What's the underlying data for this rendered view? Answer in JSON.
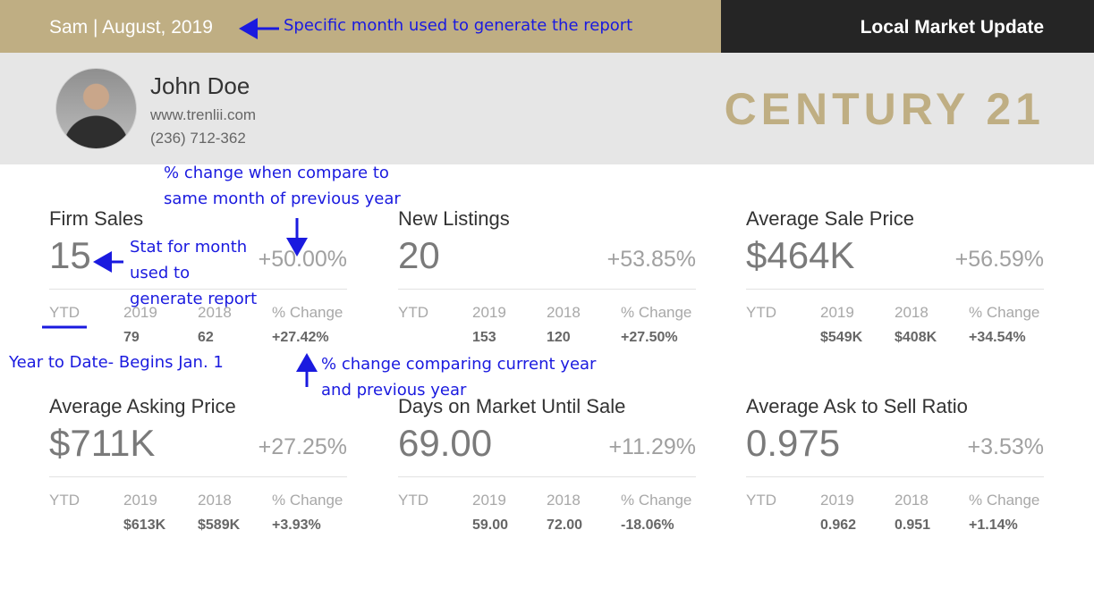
{
  "header": {
    "period": "Sam | August, 2019",
    "title": "Local Market Update"
  },
  "agent": {
    "name": "John Doe",
    "website": "www.trenlii.com",
    "phone": "(236) 712-362"
  },
  "brand": "CENTURY 21",
  "stats": [
    {
      "title": "Firm Sales",
      "value": "15",
      "change": "+50.00%",
      "ytd_label": "YTD",
      "col_2019": "2019",
      "col_2018": "2018",
      "col_change": "% Change",
      "v2019": "79",
      "v2018": "62",
      "vchange": "+27.42%"
    },
    {
      "title": "New Listings",
      "value": "20",
      "change": "+53.85%",
      "ytd_label": "YTD",
      "col_2019": "2019",
      "col_2018": "2018",
      "col_change": "% Change",
      "v2019": "153",
      "v2018": "120",
      "vchange": "+27.50%"
    },
    {
      "title": "Average Sale Price",
      "value": "$464K",
      "change": "+56.59%",
      "ytd_label": "YTD",
      "col_2019": "2019",
      "col_2018": "2018",
      "col_change": "% Change",
      "v2019": "$549K",
      "v2018": "$408K",
      "vchange": "+34.54%"
    },
    {
      "title": "Average Asking Price",
      "value": "$711K",
      "change": "+27.25%",
      "ytd_label": "YTD",
      "col_2019": "2019",
      "col_2018": "2018",
      "col_change": "% Change",
      "v2019": "$613K",
      "v2018": "$589K",
      "vchange": "+3.93%"
    },
    {
      "title": "Days on Market Until Sale",
      "value": "69.00",
      "change": "+11.29%",
      "ytd_label": "YTD",
      "col_2019": "2019",
      "col_2018": "2018",
      "col_change": "% Change",
      "v2019": "59.00",
      "v2018": "72.00",
      "vchange": "-18.06%"
    },
    {
      "title": "Average Ask to Sell Ratio",
      "value": "0.975",
      "change": "+3.53%",
      "ytd_label": "YTD",
      "col_2019": "2019",
      "col_2018": "2018",
      "col_change": "% Change",
      "v2019": "0.962",
      "v2018": "0.951",
      "vchange": "+1.14%"
    }
  ],
  "annotations": {
    "month": "Specific month used to generate the report",
    "pct_month_1": "% change when compare to",
    "pct_month_2": "same month of previous year",
    "stat_1": "Stat for month",
    "stat_2": "used to",
    "stat_3": "generate report",
    "ytd": "Year to Date- Begins Jan. 1",
    "pct_year_1": "% change comparing current year",
    "pct_year_2": "and previous year",
    "color": "#1a1adf"
  }
}
